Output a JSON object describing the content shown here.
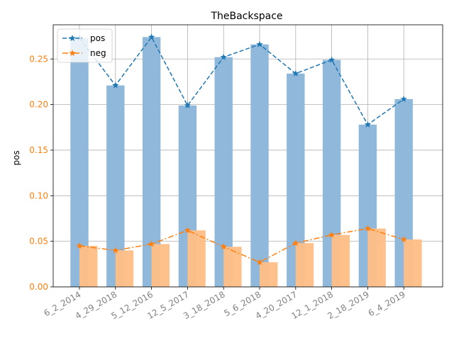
{
  "chart_data": {
    "type": "bar",
    "title": "TheBackspace",
    "xlabel": "",
    "ylabel": "pos",
    "categories": [
      "6_2_2014",
      "4_29_2018",
      "5_12_2016",
      "12_5_2017",
      "3_18_2018",
      "5_6_2018",
      "4_20_2017",
      "12_1_2018",
      "2_18_2019",
      "6_4_2019"
    ],
    "series": [
      {
        "name": "pos",
        "values": [
          0.273,
          0.221,
          0.274,
          0.199,
          0.252,
          0.266,
          0.234,
          0.249,
          0.178,
          0.206
        ],
        "bar_color": "#8fb8da",
        "line_color": "#1f77b4",
        "line_style": "dashed",
        "marker": "star"
      },
      {
        "name": "neg",
        "values": [
          0.045,
          0.04,
          0.047,
          0.062,
          0.044,
          0.027,
          0.048,
          0.057,
          0.064,
          0.052
        ],
        "bar_color": "#ffbe86",
        "line_color": "#ff7f0e",
        "line_style": "dash-dot",
        "marker": "star"
      }
    ],
    "yticks": [
      "0.00",
      "0.05",
      "0.10",
      "0.15",
      "0.20",
      "0.25"
    ],
    "ytick_values": [
      0,
      0.05,
      0.1,
      0.15,
      0.2,
      0.25
    ],
    "ylim": [
      0,
      0.2875
    ],
    "ytick_color": "#ff7f0e",
    "xtick_color": "#808080",
    "grid": true,
    "legend": "upper-left"
  }
}
